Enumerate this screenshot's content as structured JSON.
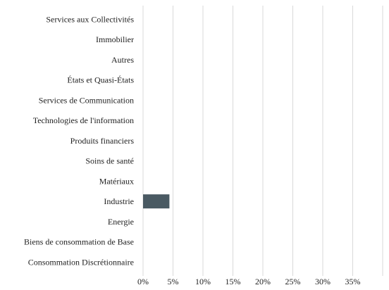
{
  "chart_data": {
    "type": "bar",
    "orientation": "horizontal",
    "categories": [
      "Services aux Collectivités",
      "Immobilier",
      "Autres",
      "États et Quasi-États",
      "Services de Communication",
      "Technologies de l'information",
      "Produits financiers",
      "Soins de santé",
      "Matériaux",
      "Industrie",
      "Energie",
      "Biens de consommation de Base",
      "Consommation Discrétionnaire"
    ],
    "values": [
      0,
      0,
      0,
      0,
      0,
      0,
      0,
      0,
      0,
      4.4,
      0,
      0,
      0
    ],
    "x_ticks": [
      "0%",
      "5%",
      "10%",
      "15%",
      "20%",
      "25%",
      "30%",
      "35%"
    ],
    "xlim": [
      0,
      40
    ],
    "grid": true,
    "bar_color": "#4a5a63",
    "grid_color": "#d9d9d9"
  }
}
